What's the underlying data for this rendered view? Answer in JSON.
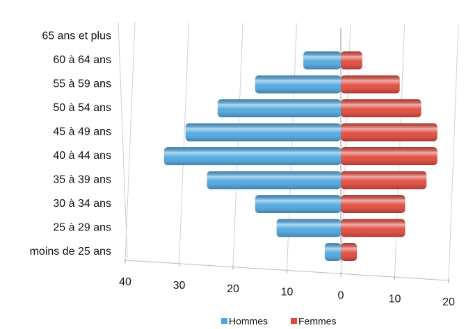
{
  "chart_data": {
    "type": "bar",
    "orientation": "horizontal",
    "stacked": false,
    "categories": [
      "moins de 25 ans",
      "25 à 29 ans",
      "30 à 34 ans",
      "35 à 39 ans",
      "40 à 44 ans",
      "45 à 49 ans",
      "50 à 54 ans",
      "55 à 59 ans",
      "60 à 64 ans",
      "65 ans et plus"
    ],
    "series": [
      {
        "name": "Hommes",
        "color": "#4fa8e0",
        "values": [
          -3,
          -12,
          -16,
          -25,
          -33,
          -29,
          -23,
          -16,
          -7,
          0
        ]
      },
      {
        "name": "Femmes",
        "color": "#e04a3c",
        "values": [
          3,
          12,
          12,
          16,
          18,
          18,
          15,
          11,
          4,
          0
        ]
      }
    ],
    "xlim": [
      -40,
      20
    ],
    "xticks": [
      {
        "value": -40,
        "label": "40"
      },
      {
        "value": -30,
        "label": "30"
      },
      {
        "value": -20,
        "label": "20"
      },
      {
        "value": -10,
        "label": "10"
      },
      0,
      10,
      20
    ],
    "grid": true,
    "legend": "bottom"
  }
}
